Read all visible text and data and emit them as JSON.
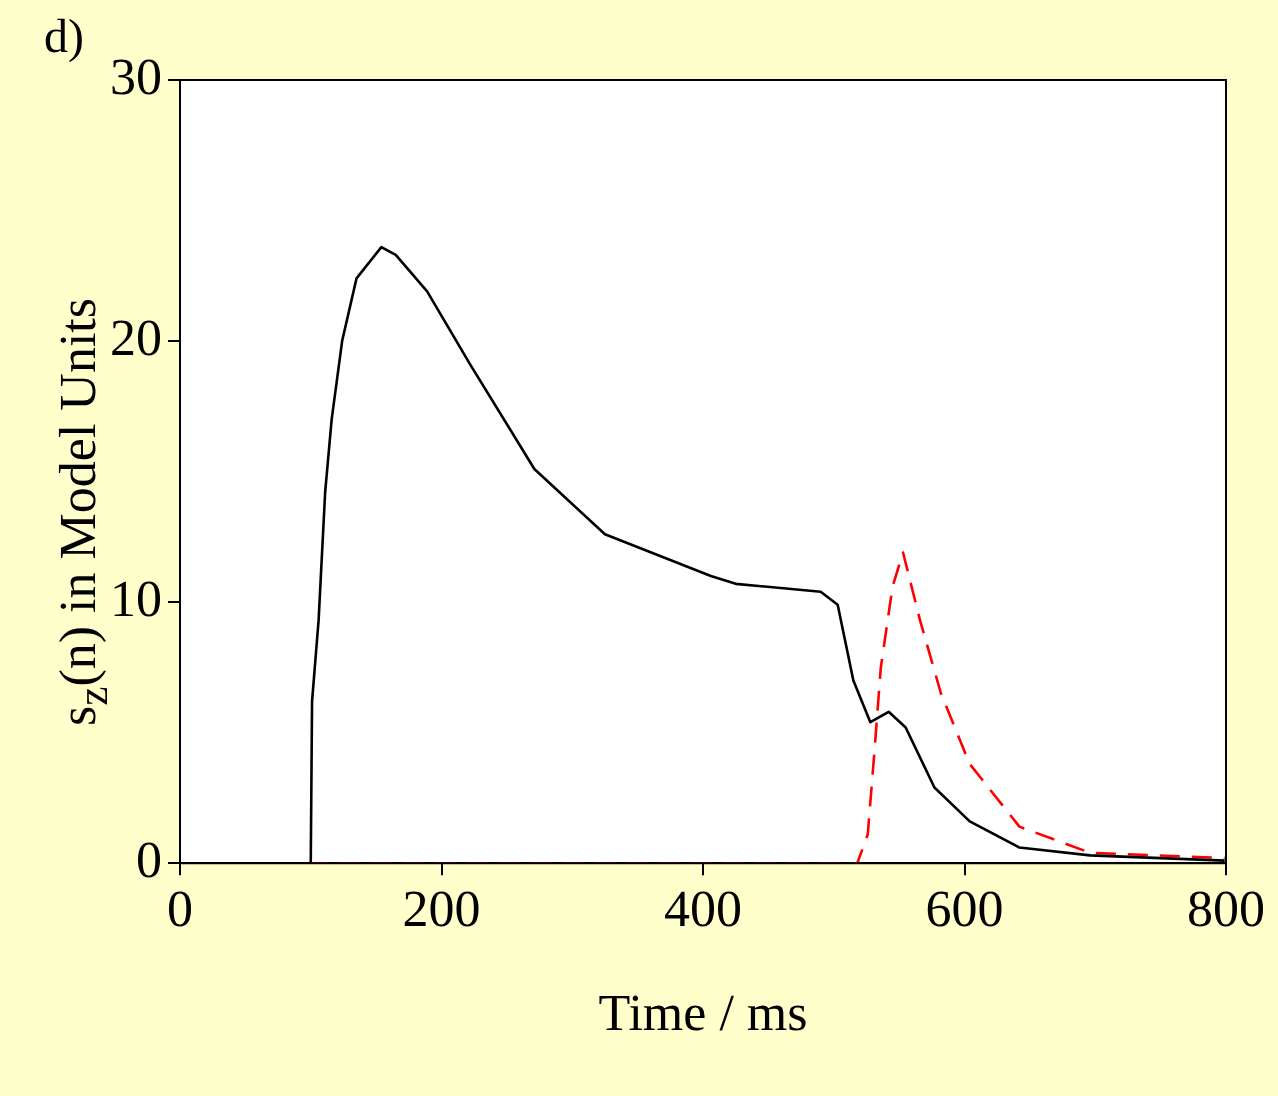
{
  "chart_data": {
    "type": "line",
    "xlabel": "Time / ms",
    "ylabel": "s$_{z}$(n) in Model Units",
    "annotations": [
      "d)"
    ],
    "xlim": [
      0,
      800
    ],
    "xticks": [
      0,
      200,
      400,
      600,
      800
    ],
    "ylim": [
      0,
      30
    ],
    "yticks": [
      0,
      10,
      20,
      30
    ],
    "marker": "none",
    "series": [
      {
        "color": "#000000",
        "line_style": "solid",
        "x": [
          0,
          100,
          101,
          106,
          111,
          116,
          124,
          135,
          154,
          165,
          189,
          222,
          271,
          325,
          406,
          425,
          490,
          503,
          515,
          528,
          542,
          555,
          577,
          604,
          642,
          696,
          799
        ],
        "values": [
          0,
          0,
          6.2,
          9.3,
          14.2,
          17,
          20,
          22.4,
          23.6,
          23.3,
          21.9,
          19.1,
          15.1,
          12.6,
          11,
          10.7,
          10.4,
          9.9,
          7,
          5.4,
          5.8,
          5.2,
          2.9,
          1.6,
          0.6,
          0.3,
          0.1
        ]
      },
      {
        "color": "#ff0000",
        "line_style": "dashed",
        "x": [
          0,
          518,
          526,
          531,
          536,
          545,
          553,
          566,
          582,
          604,
          642,
          696,
          799
        ],
        "values": [
          0,
          0,
          1.1,
          4.2,
          7.5,
          10.6,
          11.9,
          9.3,
          6.5,
          3.8,
          1.4,
          0.4,
          0.2
        ]
      }
    ]
  }
}
